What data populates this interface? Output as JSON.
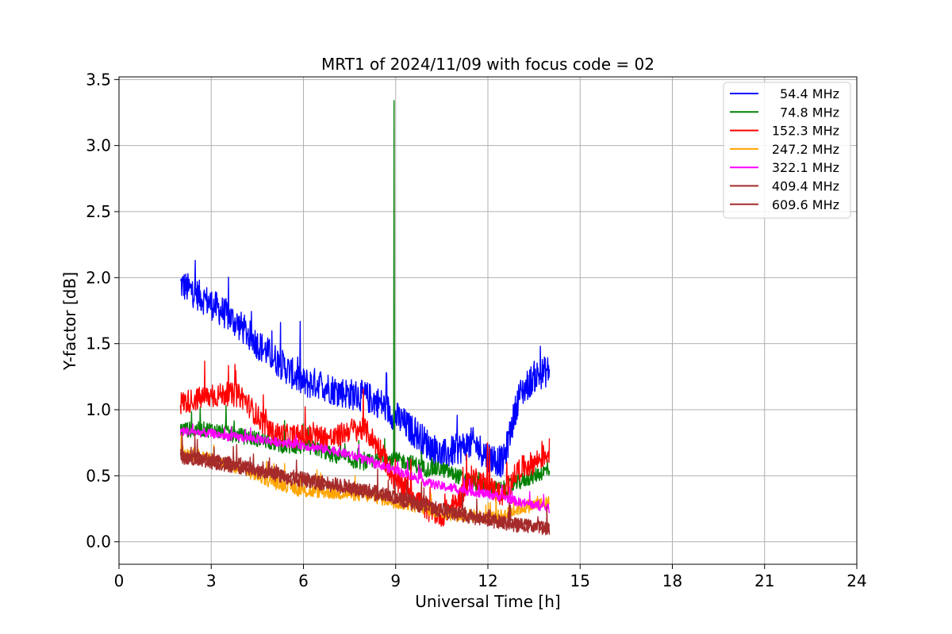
{
  "chart_data": {
    "type": "line",
    "title": "MRT1 of 2024/11/09 with focus code = 02",
    "xlabel": "Universal Time [h]",
    "ylabel": "Y-factor [dB]",
    "xlim": [
      0,
      24
    ],
    "ylim": [
      -0.17,
      3.52
    ],
    "xticks": [
      0,
      3,
      6,
      9,
      12,
      15,
      18,
      21,
      24
    ],
    "yticks": [
      0.0,
      0.5,
      1.0,
      1.5,
      2.0,
      2.5,
      3.0,
      3.5
    ],
    "xtick_labels": [
      "0",
      "3",
      "6",
      "9",
      "12",
      "15",
      "18",
      "21",
      "24"
    ],
    "ytick_labels": [
      "0.0",
      "0.5",
      "1.0",
      "1.5",
      "2.0",
      "2.5",
      "3.0",
      "3.5"
    ],
    "grid": true,
    "legend_position": "top-right",
    "series": [
      {
        "name": "54.4 MHz",
        "color": "#0000ff",
        "x": [
          2.0,
          2.5,
          3.0,
          3.5,
          4.0,
          4.5,
          5.0,
          5.5,
          6.0,
          6.5,
          7.0,
          7.5,
          8.0,
          8.5,
          9.0,
          9.5,
          10.0,
          10.5,
          11.0,
          11.5,
          12.0,
          12.5,
          13.0,
          13.5,
          14.0
        ],
        "y": [
          1.95,
          1.88,
          1.8,
          1.72,
          1.62,
          1.5,
          1.4,
          1.3,
          1.2,
          1.2,
          1.15,
          1.12,
          1.1,
          1.05,
          0.95,
          0.85,
          0.75,
          0.65,
          0.7,
          0.75,
          0.65,
          0.6,
          1.1,
          1.25,
          1.3
        ],
        "noise": 0.12
      },
      {
        "name": "74.8 MHz",
        "color": "#008000",
        "x": [
          2.0,
          2.5,
          3.0,
          3.5,
          4.0,
          4.5,
          5.0,
          5.5,
          6.0,
          6.5,
          7.0,
          7.5,
          8.0,
          8.5,
          9.0,
          9.5,
          10.0,
          10.5,
          11.0,
          11.5,
          12.0,
          12.5,
          13.0,
          13.5,
          14.0
        ],
        "y": [
          0.85,
          0.85,
          0.85,
          0.82,
          0.8,
          0.78,
          0.75,
          0.72,
          0.72,
          0.7,
          0.65,
          0.62,
          0.6,
          0.62,
          0.62,
          0.6,
          0.55,
          0.55,
          0.5,
          0.45,
          0.4,
          0.4,
          0.45,
          0.5,
          0.55
        ],
        "noise": 0.06,
        "spike": {
          "x": 8.95,
          "y": 3.34
        }
      },
      {
        "name": "152.3 MHz",
        "color": "#ff0000",
        "x": [
          2.0,
          2.5,
          3.0,
          3.5,
          4.0,
          4.5,
          5.0,
          5.5,
          6.0,
          6.5,
          7.0,
          7.5,
          8.0,
          8.5,
          9.0,
          9.5,
          10.0,
          10.5,
          11.0,
          11.5,
          12.0,
          12.5,
          13.0,
          13.5,
          14.0
        ],
        "y": [
          1.05,
          1.08,
          1.1,
          1.12,
          1.1,
          0.95,
          0.82,
          0.8,
          0.8,
          0.8,
          0.78,
          0.85,
          0.85,
          0.7,
          0.45,
          0.38,
          0.25,
          0.2,
          0.3,
          0.5,
          0.42,
          0.35,
          0.55,
          0.6,
          0.68
        ],
        "noise": 0.09
      },
      {
        "name": "247.2 MHz",
        "color": "#ffa500",
        "x": [
          2.0,
          2.5,
          3.0,
          3.5,
          4.0,
          4.5,
          5.0,
          5.5,
          6.0,
          6.5,
          7.0,
          7.5,
          8.0,
          8.5,
          9.0,
          9.5,
          10.0,
          10.5,
          11.0,
          11.5,
          12.0,
          12.5,
          13.0,
          13.5,
          14.0
        ],
        "y": [
          0.68,
          0.66,
          0.62,
          0.58,
          0.55,
          0.5,
          0.45,
          0.42,
          0.38,
          0.38,
          0.37,
          0.36,
          0.35,
          0.33,
          0.3,
          0.28,
          0.25,
          0.22,
          0.2,
          0.2,
          0.18,
          0.2,
          0.25,
          0.28,
          0.3
        ],
        "noise": 0.05
      },
      {
        "name": "322.1 MHz",
        "color": "#ff00ff",
        "x": [
          2.0,
          2.5,
          3.0,
          3.5,
          4.0,
          4.5,
          5.0,
          5.5,
          6.0,
          6.5,
          7.0,
          7.5,
          8.0,
          8.5,
          9.0,
          9.5,
          10.0,
          10.5,
          11.0,
          11.5,
          12.0,
          12.5,
          13.0,
          13.5,
          14.0
        ],
        "y": [
          0.84,
          0.83,
          0.82,
          0.8,
          0.79,
          0.78,
          0.76,
          0.75,
          0.73,
          0.71,
          0.69,
          0.66,
          0.62,
          0.58,
          0.54,
          0.5,
          0.45,
          0.42,
          0.4,
          0.38,
          0.36,
          0.34,
          0.3,
          0.28,
          0.25
        ],
        "noise": 0.035
      },
      {
        "name": "409.4 MHz",
        "color": "#a52a2a",
        "x": [
          2.0,
          2.5,
          3.0,
          3.5,
          4.0,
          4.5,
          5.0,
          5.5,
          6.0,
          6.5,
          7.0,
          7.5,
          8.0,
          8.5,
          9.0,
          9.5,
          10.0,
          10.5,
          11.0,
          11.5,
          12.0,
          12.5,
          13.0,
          13.5,
          14.0
        ],
        "y": [
          0.66,
          0.64,
          0.62,
          0.6,
          0.58,
          0.55,
          0.53,
          0.5,
          0.48,
          0.46,
          0.44,
          0.42,
          0.4,
          0.37,
          0.34,
          0.31,
          0.28,
          0.25,
          0.22,
          0.2,
          0.18,
          0.15,
          0.13,
          0.12,
          0.11
        ],
        "noise": 0.05
      },
      {
        "name": "609.6 MHz",
        "color": "#a52a2a",
        "x": [
          2.0,
          2.5,
          3.0,
          3.5,
          4.0,
          4.5,
          5.0,
          5.5,
          6.0,
          6.5,
          7.0,
          7.5,
          8.0,
          8.5,
          9.0,
          9.5,
          10.0,
          10.5,
          11.0,
          11.5,
          12.0,
          12.5,
          13.0,
          13.5,
          14.0
        ],
        "y": [
          0.64,
          0.62,
          0.6,
          0.58,
          0.56,
          0.53,
          0.51,
          0.48,
          0.46,
          0.44,
          0.42,
          0.4,
          0.38,
          0.35,
          0.32,
          0.29,
          0.26,
          0.23,
          0.2,
          0.18,
          0.16,
          0.14,
          0.12,
          0.11,
          0.1
        ],
        "noise": 0.05
      }
    ]
  }
}
